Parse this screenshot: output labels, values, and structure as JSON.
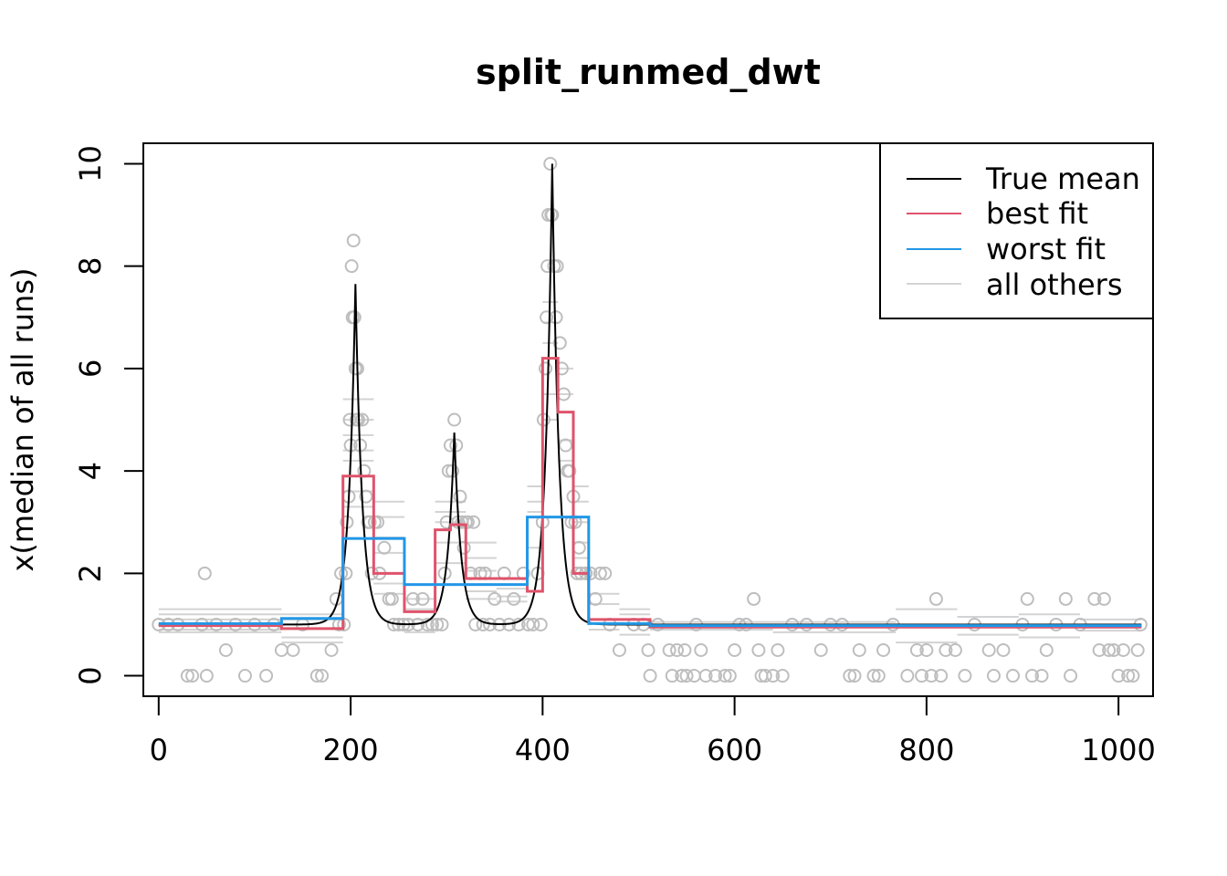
{
  "chart_data": {
    "type": "line",
    "title": "split_runmed_dwt",
    "xlabel": "",
    "ylabel": "x(median of all runs)",
    "xlim": [
      -16,
      1036
    ],
    "ylim": [
      -0.4,
      10.4
    ],
    "x_ticks": [
      0,
      200,
      400,
      600,
      800,
      1000
    ],
    "x_tick_labels": [
      "0",
      "200",
      "400",
      "600",
      "800",
      "1000"
    ],
    "y_ticks": [
      0,
      2,
      4,
      6,
      8,
      10
    ],
    "y_tick_labels": [
      "0",
      "2",
      "4",
      "6",
      "8",
      "10"
    ],
    "grid": false,
    "legend": {
      "position": "top-right",
      "entries": [
        {
          "label": "True mean",
          "color": "#000000"
        },
        {
          "label": "best fit",
          "color": "#DF536B"
        },
        {
          "label": "worst fit",
          "color": "#2297E6"
        },
        {
          "label": "all others",
          "color": "#D3D3D3"
        }
      ]
    },
    "true_mean_peaks": [
      {
        "center": 205,
        "height": 6.65,
        "decay": 7
      },
      {
        "center": 308,
        "height": 3.75,
        "decay": 7
      },
      {
        "center": 410,
        "height": 9.0,
        "decay": 7
      }
    ],
    "true_mean_baseline": 1,
    "best_fit": {
      "color": "#DF536B",
      "steps": [
        [
          0,
          128,
          0.98
        ],
        [
          128,
          192,
          0.92
        ],
        [
          192,
          224,
          3.9
        ],
        [
          224,
          256,
          2.0
        ],
        [
          256,
          288,
          1.25
        ],
        [
          288,
          304,
          2.85
        ],
        [
          304,
          320,
          2.95
        ],
        [
          320,
          384,
          1.9
        ],
        [
          384,
          400,
          1.65
        ],
        [
          400,
          416,
          6.2
        ],
        [
          416,
          432,
          5.15
        ],
        [
          432,
          448,
          2.0
        ],
        [
          448,
          512,
          1.1
        ],
        [
          512,
          1024,
          0.95
        ]
      ]
    },
    "worst_fit": {
      "color": "#2297E6",
      "steps": [
        [
          0,
          128,
          1.02
        ],
        [
          128,
          192,
          1.12
        ],
        [
          192,
          256,
          2.68
        ],
        [
          256,
          384,
          1.78
        ],
        [
          384,
          448,
          3.1
        ],
        [
          448,
          512,
          1.02
        ],
        [
          512,
          1024,
          0.98
        ]
      ]
    },
    "others": {
      "color": "#D3D3D3",
      "segments": [
        [
          0,
          128,
          1.3
        ],
        [
          0,
          128,
          1.2
        ],
        [
          0,
          128,
          1.1
        ],
        [
          0,
          128,
          0.9
        ],
        [
          0,
          128,
          0.85
        ],
        [
          128,
          192,
          1.2
        ],
        [
          128,
          192,
          1.1
        ],
        [
          128,
          192,
          0.75
        ],
        [
          128,
          192,
          0.65
        ],
        [
          192,
          224,
          5.4
        ],
        [
          192,
          224,
          5.0
        ],
        [
          192,
          224,
          4.7
        ],
        [
          192,
          224,
          4.4
        ],
        [
          192,
          224,
          4.2
        ],
        [
          192,
          224,
          3.6
        ],
        [
          192,
          224,
          3.3
        ],
        [
          224,
          256,
          3.4
        ],
        [
          224,
          256,
          3.1
        ],
        [
          224,
          256,
          2.7
        ],
        [
          224,
          256,
          2.4
        ],
        [
          224,
          256,
          1.8
        ],
        [
          224,
          256,
          1.6
        ],
        [
          256,
          288,
          1.5
        ],
        [
          256,
          288,
          1.3
        ],
        [
          256,
          288,
          1.1
        ],
        [
          256,
          288,
          0.85
        ],
        [
          288,
          320,
          3.4
        ],
        [
          288,
          320,
          3.2
        ],
        [
          288,
          320,
          3.0
        ],
        [
          288,
          320,
          2.6
        ],
        [
          288,
          320,
          2.2
        ],
        [
          320,
          352,
          2.6
        ],
        [
          320,
          352,
          2.3
        ],
        [
          320,
          352,
          2.05
        ],
        [
          320,
          352,
          1.65
        ],
        [
          320,
          352,
          1.5
        ],
        [
          352,
          384,
          1.7
        ],
        [
          352,
          384,
          1.55
        ],
        [
          352,
          384,
          1.45
        ],
        [
          384,
          400,
          3.7
        ],
        [
          384,
          400,
          3.4
        ],
        [
          384,
          400,
          3.2
        ],
        [
          384,
          400,
          2.5
        ],
        [
          400,
          416,
          7.3
        ],
        [
          400,
          416,
          6.9
        ],
        [
          400,
          416,
          6.5
        ],
        [
          400,
          416,
          5.5
        ],
        [
          400,
          416,
          5.0
        ],
        [
          416,
          432,
          6.0
        ],
        [
          416,
          432,
          5.5
        ],
        [
          416,
          432,
          4.6
        ],
        [
          416,
          432,
          4.2
        ],
        [
          432,
          448,
          3.7
        ],
        [
          432,
          448,
          3.4
        ],
        [
          432,
          448,
          3.0
        ],
        [
          432,
          448,
          2.6
        ],
        [
          432,
          448,
          2.3
        ],
        [
          448,
          480,
          1.6
        ],
        [
          448,
          480,
          1.4
        ],
        [
          448,
          480,
          0.9
        ],
        [
          480,
          512,
          1.3
        ],
        [
          480,
          512,
          1.2
        ],
        [
          480,
          512,
          0.8
        ],
        [
          512,
          640,
          1.05
        ],
        [
          512,
          640,
          0.9
        ],
        [
          640,
          768,
          1.05
        ],
        [
          640,
          768,
          0.85
        ],
        [
          768,
          832,
          1.3
        ],
        [
          768,
          832,
          0.65
        ],
        [
          832,
          896,
          1.15
        ],
        [
          832,
          896,
          0.8
        ],
        [
          896,
          960,
          1.2
        ],
        [
          896,
          960,
          0.75
        ],
        [
          960,
          1024,
          1.1
        ],
        [
          960,
          1024,
          0.88
        ]
      ]
    },
    "points": {
      "color": "#BEBEBE",
      "values": [
        [
          0,
          1
        ],
        [
          10,
          1
        ],
        [
          20,
          1
        ],
        [
          30,
          0
        ],
        [
          35,
          0
        ],
        [
          45,
          1
        ],
        [
          48,
          2
        ],
        [
          50,
          0
        ],
        [
          60,
          1
        ],
        [
          70,
          0.5
        ],
        [
          80,
          1
        ],
        [
          90,
          0
        ],
        [
          100,
          1
        ],
        [
          112,
          0
        ],
        [
          120,
          1
        ],
        [
          128,
          0.5
        ],
        [
          140,
          0.5
        ],
        [
          150,
          1
        ],
        [
          165,
          0
        ],
        [
          170,
          0
        ],
        [
          180,
          0.5
        ],
        [
          185,
          1.5
        ],
        [
          188,
          1
        ],
        [
          190,
          2
        ],
        [
          193,
          1
        ],
        [
          195,
          2
        ],
        [
          196,
          3
        ],
        [
          198,
          3.5
        ],
        [
          199,
          5
        ],
        [
          200,
          4.5
        ],
        [
          201,
          8
        ],
        [
          202,
          7
        ],
        [
          203,
          8.5
        ],
        [
          204,
          7
        ],
        [
          205,
          6
        ],
        [
          206,
          5
        ],
        [
          207,
          6
        ],
        [
          208,
          5
        ],
        [
          210,
          4.5
        ],
        [
          212,
          5
        ],
        [
          214,
          4
        ],
        [
          216,
          3.5
        ],
        [
          218,
          3
        ],
        [
          220,
          3
        ],
        [
          222,
          2
        ],
        [
          225,
          3
        ],
        [
          228,
          3
        ],
        [
          230,
          2
        ],
        [
          235,
          2.5
        ],
        [
          240,
          1.5
        ],
        [
          243,
          1.5
        ],
        [
          245,
          1
        ],
        [
          250,
          1
        ],
        [
          255,
          1
        ],
        [
          260,
          1
        ],
        [
          265,
          1.5
        ],
        [
          270,
          1
        ],
        [
          275,
          1.5
        ],
        [
          280,
          1
        ],
        [
          285,
          1
        ],
        [
          290,
          1
        ],
        [
          295,
          1
        ],
        [
          298,
          2
        ],
        [
          300,
          3
        ],
        [
          302,
          4
        ],
        [
          304,
          4.5
        ],
        [
          306,
          4
        ],
        [
          308,
          5
        ],
        [
          310,
          4.5
        ],
        [
          312,
          3
        ],
        [
          314,
          3.5
        ],
        [
          316,
          3
        ],
        [
          318,
          2.5
        ],
        [
          320,
          3
        ],
        [
          322,
          3
        ],
        [
          325,
          2
        ],
        [
          328,
          3
        ],
        [
          330,
          1
        ],
        [
          335,
          2
        ],
        [
          338,
          1
        ],
        [
          340,
          2
        ],
        [
          345,
          1
        ],
        [
          350,
          1.5
        ],
        [
          355,
          1
        ],
        [
          360,
          2
        ],
        [
          365,
          1
        ],
        [
          370,
          1.5
        ],
        [
          375,
          1
        ],
        [
          380,
          2
        ],
        [
          385,
          1
        ],
        [
          390,
          1
        ],
        [
          395,
          2
        ],
        [
          398,
          1
        ],
        [
          400,
          3
        ],
        [
          401,
          5
        ],
        [
          403,
          6
        ],
        [
          404,
          7
        ],
        [
          405,
          8
        ],
        [
          406,
          9
        ],
        [
          408,
          10
        ],
        [
          409,
          9
        ],
        [
          410,
          9
        ],
        [
          412,
          8
        ],
        [
          414,
          7
        ],
        [
          415,
          8
        ],
        [
          418,
          6.5
        ],
        [
          420,
          6
        ],
        [
          422,
          5.5
        ],
        [
          424,
          4.5
        ],
        [
          426,
          4
        ],
        [
          428,
          4
        ],
        [
          430,
          3
        ],
        [
          432,
          3.5
        ],
        [
          434,
          3
        ],
        [
          436,
          2
        ],
        [
          438,
          2.5
        ],
        [
          440,
          2
        ],
        [
          445,
          2
        ],
        [
          450,
          2
        ],
        [
          455,
          1.5
        ],
        [
          460,
          2
        ],
        [
          465,
          2
        ],
        [
          470,
          1
        ],
        [
          480,
          0.5
        ],
        [
          495,
          1
        ],
        [
          505,
          1
        ],
        [
          510,
          0.5
        ],
        [
          512,
          0
        ],
        [
          520,
          1
        ],
        [
          532,
          0.5
        ],
        [
          535,
          0
        ],
        [
          540,
          0.5
        ],
        [
          545,
          0
        ],
        [
          548,
          0.5
        ],
        [
          550,
          0
        ],
        [
          558,
          0
        ],
        [
          560,
          1
        ],
        [
          565,
          0.5
        ],
        [
          570,
          0
        ],
        [
          580,
          0
        ],
        [
          590,
          0
        ],
        [
          595,
          0
        ],
        [
          600,
          0.5
        ],
        [
          605,
          1
        ],
        [
          612,
          1
        ],
        [
          620,
          1.5
        ],
        [
          625,
          0.5
        ],
        [
          628,
          0
        ],
        [
          632,
          0
        ],
        [
          640,
          0
        ],
        [
          645,
          0.5
        ],
        [
          650,
          0
        ],
        [
          660,
          1
        ],
        [
          675,
          1
        ],
        [
          690,
          0.5
        ],
        [
          700,
          1
        ],
        [
          712,
          1
        ],
        [
          720,
          0
        ],
        [
          725,
          0
        ],
        [
          730,
          0.5
        ],
        [
          745,
          0
        ],
        [
          750,
          0
        ],
        [
          755,
          0.5
        ],
        [
          765,
          1
        ],
        [
          780,
          0
        ],
        [
          790,
          0.5
        ],
        [
          795,
          0
        ],
        [
          800,
          0.5
        ],
        [
          805,
          0
        ],
        [
          810,
          1.5
        ],
        [
          815,
          0
        ],
        [
          820,
          0.5
        ],
        [
          830,
          0.5
        ],
        [
          840,
          0
        ],
        [
          850,
          1
        ],
        [
          865,
          0.5
        ],
        [
          870,
          0
        ],
        [
          880,
          0.5
        ],
        [
          890,
          0
        ],
        [
          900,
          1
        ],
        [
          905,
          1.5
        ],
        [
          910,
          0
        ],
        [
          920,
          0
        ],
        [
          925,
          0.5
        ],
        [
          935,
          1
        ],
        [
          945,
          1.5
        ],
        [
          950,
          0
        ],
        [
          960,
          1
        ],
        [
          975,
          1.5
        ],
        [
          980,
          0.5
        ],
        [
          985,
          1.5
        ],
        [
          990,
          0.5
        ],
        [
          995,
          0.5
        ],
        [
          1000,
          0
        ],
        [
          1005,
          0.5
        ],
        [
          1010,
          0
        ],
        [
          1015,
          0
        ],
        [
          1020,
          0.5
        ],
        [
          1023,
          1
        ]
      ]
    }
  }
}
